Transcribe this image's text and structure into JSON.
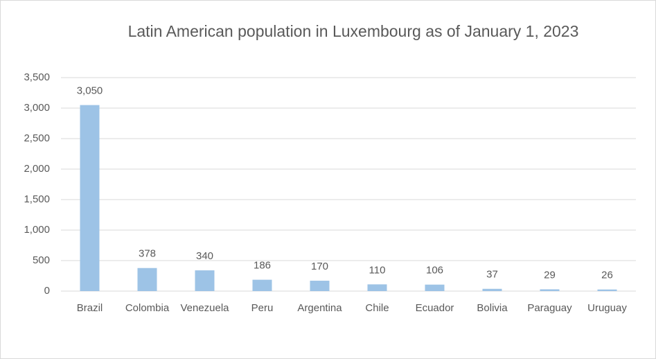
{
  "chart_data": {
    "type": "bar",
    "title": "Latin American population in Luxembourg as of January 1, 2023",
    "categories": [
      "Brazil",
      "Colombia",
      "Venezuela",
      "Peru",
      "Argentina",
      "Chile",
      "Ecuador",
      "Bolivia",
      "Paraguay",
      "Uruguay"
    ],
    "values": [
      3050,
      378,
      340,
      186,
      170,
      110,
      106,
      37,
      29,
      26
    ],
    "value_labels": [
      "3,050",
      "378",
      "340",
      "186",
      "170",
      "110",
      "106",
      "37",
      "29",
      "26"
    ],
    "color": "#9dc3e6",
    "ylim": [
      0,
      3500
    ],
    "yticks": [
      0,
      500,
      {
        "value": 1000,
        "label": "1,000"
      },
      {
        "value": 1500,
        "label": "1,500"
      },
      {
        "value": 2000,
        "label": "2,000"
      },
      {
        "value": 2500,
        "label": "2,500"
      },
      {
        "value": 3000,
        "label": "3,000"
      },
      {
        "value": 3500,
        "label": "3,500"
      }
    ],
    "grid": true
  }
}
